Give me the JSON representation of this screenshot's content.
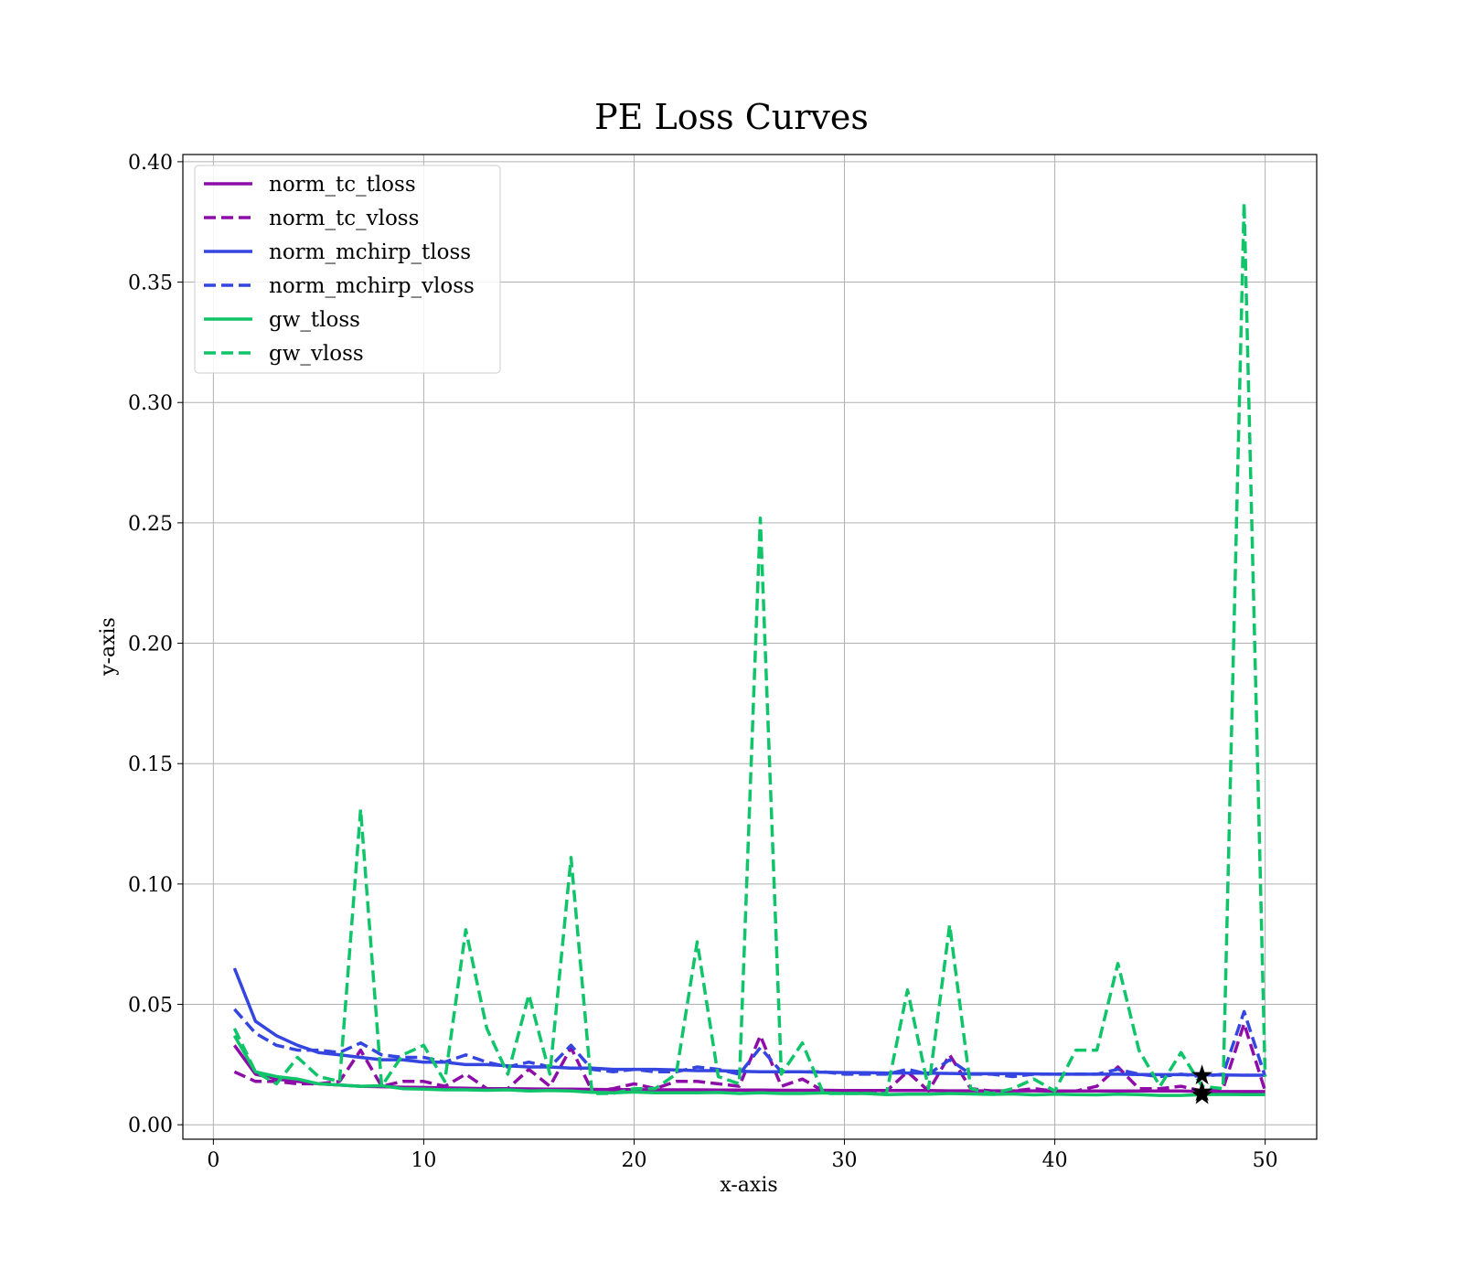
{
  "chart_data": {
    "type": "line",
    "title": "PE Loss Curves",
    "xlabel": "x-axis",
    "ylabel": "y-axis",
    "xlim": [
      -1.45,
      52.45
    ],
    "ylim": [
      -0.006,
      0.403
    ],
    "xticks": [
      "0",
      "10",
      "20",
      "30",
      "40",
      "50"
    ],
    "yticks": [
      "0.00",
      "0.05",
      "0.10",
      "0.15",
      "0.20",
      "0.25",
      "0.30",
      "0.35",
      "0.40"
    ],
    "grid": true,
    "legend_position": "upper-left",
    "x": [
      1,
      2,
      3,
      4,
      5,
      6,
      7,
      8,
      9,
      10,
      11,
      12,
      13,
      14,
      15,
      16,
      17,
      18,
      19,
      20,
      21,
      22,
      23,
      24,
      25,
      26,
      27,
      28,
      29,
      30,
      31,
      32,
      33,
      34,
      35,
      36,
      37,
      38,
      39,
      40,
      41,
      42,
      43,
      44,
      45,
      46,
      47,
      48,
      49,
      50
    ],
    "series": [
      {
        "name": "norm_tc_tloss",
        "color": "#8e0ca8",
        "style": "solid",
        "values": [
          0.033,
          0.021,
          0.019,
          0.018,
          0.017,
          0.0165,
          0.016,
          0.0158,
          0.0156,
          0.0155,
          0.0153,
          0.0152,
          0.015,
          0.015,
          0.0149,
          0.0148,
          0.0148,
          0.0147,
          0.0146,
          0.0146,
          0.0145,
          0.0145,
          0.0145,
          0.0144,
          0.0144,
          0.0144,
          0.0143,
          0.0143,
          0.0143,
          0.0142,
          0.0142,
          0.0142,
          0.0142,
          0.0142,
          0.0141,
          0.0141,
          0.0141,
          0.0141,
          0.0141,
          0.014,
          0.014,
          0.014,
          0.014,
          0.014,
          0.014,
          0.014,
          0.0138,
          0.0138,
          0.0138,
          0.0138
        ]
      },
      {
        "name": "norm_tc_vloss",
        "color": "#8e0ca8",
        "style": "dashed",
        "values": [
          0.022,
          0.018,
          0.018,
          0.017,
          0.017,
          0.018,
          0.031,
          0.016,
          0.018,
          0.018,
          0.016,
          0.021,
          0.015,
          0.015,
          0.023,
          0.016,
          0.032,
          0.014,
          0.015,
          0.017,
          0.015,
          0.018,
          0.018,
          0.017,
          0.016,
          0.037,
          0.016,
          0.019,
          0.014,
          0.014,
          0.014,
          0.014,
          0.022,
          0.014,
          0.029,
          0.015,
          0.014,
          0.014,
          0.015,
          0.014,
          0.014,
          0.016,
          0.024,
          0.015,
          0.015,
          0.016,
          0.014,
          0.015,
          0.042,
          0.014
        ]
      },
      {
        "name": "norm_mchirp_tloss",
        "color": "#3445e0",
        "style": "solid",
        "values": [
          0.065,
          0.043,
          0.037,
          0.033,
          0.03,
          0.029,
          0.028,
          0.027,
          0.027,
          0.026,
          0.026,
          0.025,
          0.025,
          0.0245,
          0.024,
          0.024,
          0.0235,
          0.0235,
          0.023,
          0.023,
          0.023,
          0.0228,
          0.0225,
          0.0225,
          0.0222,
          0.022,
          0.022,
          0.022,
          0.0218,
          0.0217,
          0.0216,
          0.0215,
          0.0215,
          0.0214,
          0.0213,
          0.0212,
          0.0212,
          0.0212,
          0.0211,
          0.021,
          0.021,
          0.021,
          0.021,
          0.0209,
          0.0208,
          0.0208,
          0.0207,
          0.0207,
          0.0206,
          0.0206
        ]
      },
      {
        "name": "norm_mchirp_vloss",
        "color": "#3445e0",
        "style": "dashed",
        "values": [
          0.048,
          0.038,
          0.033,
          0.031,
          0.031,
          0.03,
          0.034,
          0.029,
          0.028,
          0.028,
          0.026,
          0.029,
          0.026,
          0.024,
          0.026,
          0.024,
          0.033,
          0.023,
          0.022,
          0.023,
          0.022,
          0.022,
          0.024,
          0.023,
          0.021,
          0.032,
          0.022,
          0.022,
          0.022,
          0.021,
          0.021,
          0.021,
          0.023,
          0.021,
          0.027,
          0.021,
          0.021,
          0.02,
          0.021,
          0.021,
          0.021,
          0.021,
          0.023,
          0.021,
          0.02,
          0.021,
          0.02,
          0.021,
          0.047,
          0.02
        ]
      },
      {
        "name": "gw_tloss",
        "color": "#10c46a",
        "style": "solid",
        "values": [
          0.037,
          0.022,
          0.02,
          0.019,
          0.017,
          0.0165,
          0.016,
          0.0162,
          0.015,
          0.0148,
          0.0145,
          0.0145,
          0.0143,
          0.0145,
          0.014,
          0.0142,
          0.014,
          0.0135,
          0.0133,
          0.0136,
          0.0133,
          0.0133,
          0.0133,
          0.0134,
          0.013,
          0.0133,
          0.013,
          0.013,
          0.0132,
          0.013,
          0.013,
          0.0125,
          0.0127,
          0.0127,
          0.013,
          0.0128,
          0.0126,
          0.0128,
          0.0124,
          0.0127,
          0.0125,
          0.0124,
          0.0127,
          0.0125,
          0.0122,
          0.0122,
          0.0125,
          0.0126,
          0.0125,
          0.0125
        ]
      },
      {
        "name": "gw_vloss",
        "color": "#10c46a",
        "style": "dashed",
        "values": [
          0.04,
          0.022,
          0.017,
          0.028,
          0.02,
          0.018,
          0.131,
          0.016,
          0.029,
          0.033,
          0.018,
          0.081,
          0.04,
          0.021,
          0.054,
          0.021,
          0.111,
          0.013,
          0.013,
          0.015,
          0.015,
          0.021,
          0.076,
          0.02,
          0.017,
          0.252,
          0.021,
          0.034,
          0.013,
          0.013,
          0.013,
          0.013,
          0.056,
          0.015,
          0.083,
          0.015,
          0.013,
          0.015,
          0.019,
          0.014,
          0.031,
          0.031,
          0.067,
          0.031,
          0.016,
          0.03,
          0.016,
          0.015,
          0.383,
          0.02
        ]
      }
    ],
    "markers": [
      {
        "label": "",
        "symbol": "★",
        "color": "#000000",
        "x": 47,
        "y": 0.0205
      },
      {
        "label": "",
        "symbol": "★",
        "color": "#000000",
        "x": 47,
        "y": 0.0138
      },
      {
        "label": "",
        "symbol": "★",
        "color": "#000000",
        "x": 47,
        "y": 0.0125
      }
    ]
  }
}
